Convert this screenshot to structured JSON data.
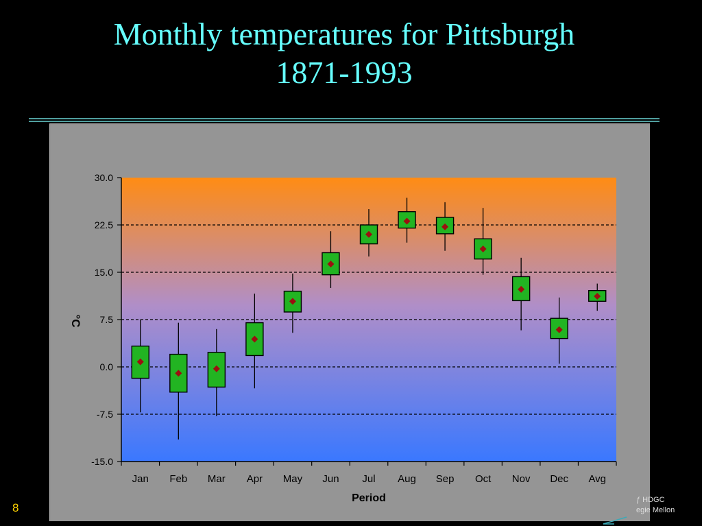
{
  "slide": {
    "title_line1": "Monthly temperatures for Pittsburgh",
    "title_line2": "1871-1993",
    "number": "8",
    "footer_line1": "ƒ HDGC",
    "footer_line2": "egie Mellon"
  },
  "colors": {
    "title": "#66ffff",
    "box_fill": "#22b422",
    "mean_marker": "#9b1010",
    "gradient_top": "#ff8c14",
    "gradient_mid": "#b08ec8",
    "gradient_bottom": "#3a78ff",
    "frame": "#959595"
  },
  "chart_data": {
    "type": "box",
    "title": "",
    "xlabel": "Period",
    "ylabel": "°C",
    "ylim": [
      -15,
      30
    ],
    "yticks": [
      30,
      22.5,
      15,
      7.5,
      0,
      -7.5,
      -15
    ],
    "ytick_labels": [
      "30.0",
      "22.5",
      "15.0",
      "7.5",
      "0.0",
      "-7.5",
      "-15.0"
    ],
    "grid": "horizontal dashed",
    "categories": [
      "Jan",
      "Feb",
      "Mar",
      "Apr",
      "May",
      "Jun",
      "Jul",
      "Aug",
      "Sep",
      "Oct",
      "Nov",
      "Dec",
      "Avg"
    ],
    "series": [
      {
        "whisker_low": [
          -7.2,
          -11.5,
          -7.8,
          -3.4,
          5.4,
          12.5,
          17.5,
          19.7,
          18.4,
          14.6,
          5.8,
          0.5,
          8.9
        ],
        "box_low": [
          -1.8,
          -4.0,
          -3.2,
          1.8,
          8.7,
          14.6,
          19.5,
          22.0,
          21.1,
          17.1,
          10.5,
          4.5,
          10.4
        ],
        "mean": [
          0.8,
          -1.0,
          -0.3,
          4.4,
          10.4,
          16.3,
          21.0,
          23.1,
          22.2,
          18.7,
          12.3,
          5.9,
          11.2
        ],
        "box_high": [
          3.3,
          2.0,
          2.3,
          7.0,
          12.0,
          18.1,
          22.5,
          24.6,
          23.7,
          20.3,
          14.3,
          7.7,
          12.1
        ],
        "whisker_high": [
          7.5,
          7.0,
          6.0,
          11.6,
          14.8,
          21.5,
          25.0,
          26.8,
          26.1,
          25.2,
          17.3,
          11.0,
          13.2
        ]
      }
    ]
  }
}
